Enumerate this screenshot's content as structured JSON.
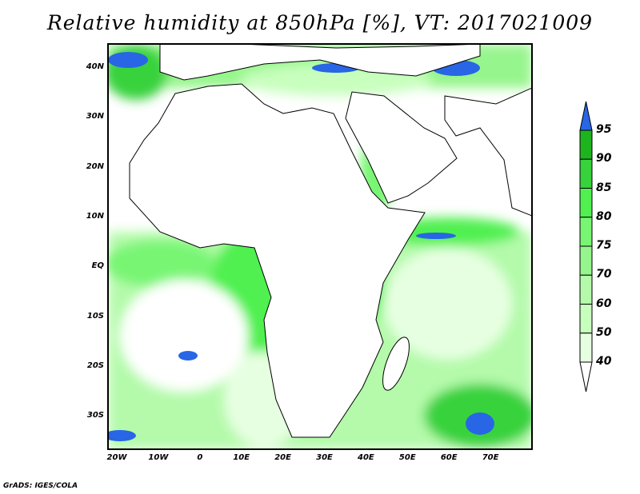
{
  "title": "Relative humidity at 850hPa [%], VT: 2017021009",
  "credit": "GrADS: IGES/COLA",
  "lon_labels": [
    "20W",
    "10W",
    "0",
    "10E",
    "20E",
    "30E",
    "40E",
    "50E",
    "60E",
    "70E"
  ],
  "lat_labels": [
    "40N",
    "30N",
    "20N",
    "10N",
    "EQ",
    "10S",
    "20S",
    "30S"
  ],
  "colorbar": {
    "labels": [
      "95",
      "90",
      "85",
      "80",
      "75",
      "70",
      "60",
      "50",
      "40"
    ],
    "colors": [
      "#1eb41e",
      "#37d23c",
      "#50f050",
      "#78f573",
      "#96f58c",
      "#b4faaa",
      "#c8ffbe",
      "#e6ffe1"
    ],
    "over_color": "#2866e6",
    "under_color": "#ffffff"
  }
}
